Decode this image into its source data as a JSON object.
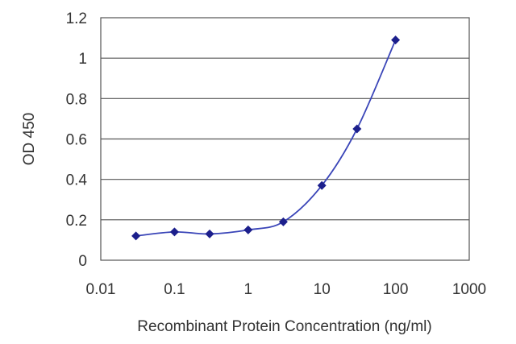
{
  "chart_data": {
    "type": "scatter",
    "title": "",
    "xlabel": "Recombinant Protein Concentration (ng/ml)",
    "ylabel": "OD 450",
    "x_scale": "log",
    "xlim": [
      0.01,
      1000
    ],
    "ylim": [
      0,
      1.2
    ],
    "x_tick_labels": [
      "0.01",
      "0.1",
      "1",
      "10",
      "100",
      "1000"
    ],
    "y_tick_labels": [
      "0",
      "0.2",
      "0.4",
      "0.6",
      "0.8",
      "1",
      "1.2"
    ],
    "grid": "horizontal",
    "legend": "none",
    "series": [
      {
        "x": [
          0.03,
          0.1,
          0.3,
          1,
          3,
          10,
          30,
          100
        ],
        "y": [
          0.12,
          0.14,
          0.13,
          0.15,
          0.19,
          0.37,
          0.65,
          1.09
        ]
      }
    ],
    "colors": {
      "line": "#3a45b8",
      "marker": "#1c1f8c",
      "grid": "#555555",
      "text": "#333333"
    }
  }
}
